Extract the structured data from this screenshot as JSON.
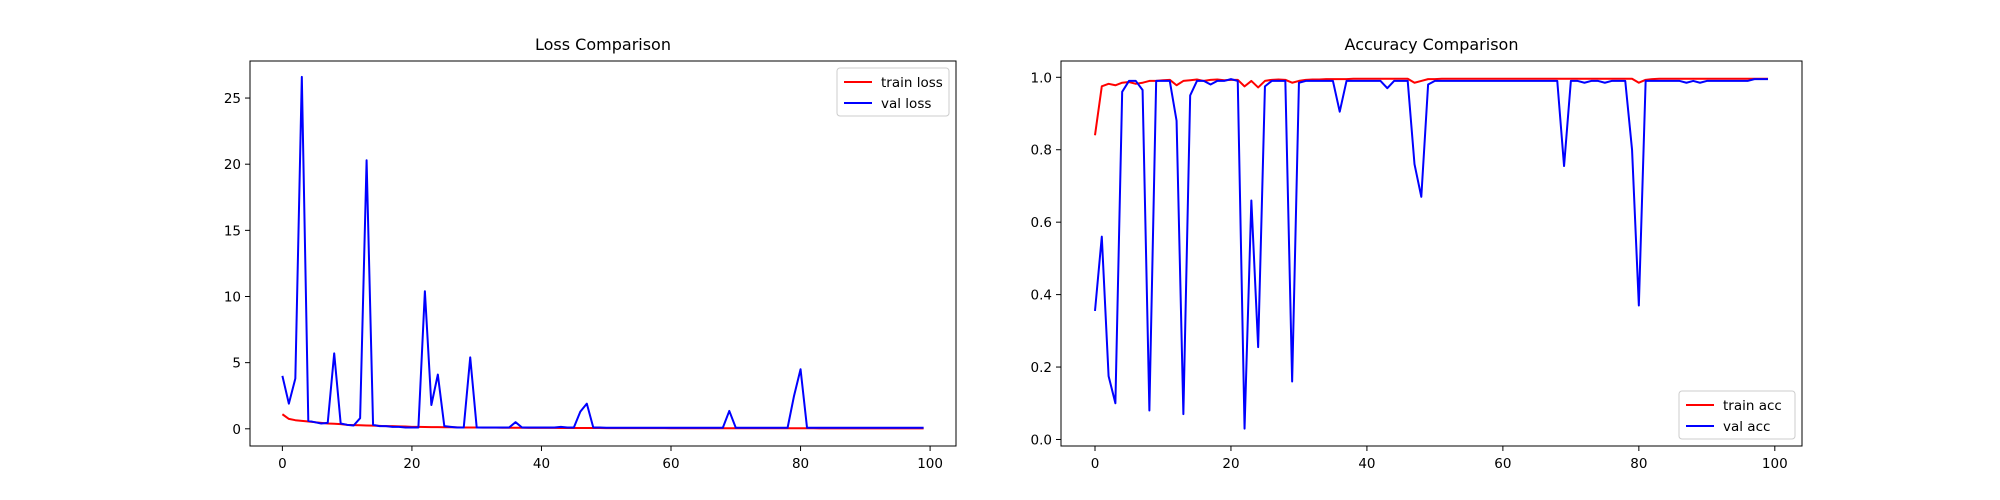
{
  "chart_data": [
    {
      "type": "line",
      "title": "Loss Comparison",
      "xlabel": "",
      "ylabel": "",
      "xlim": [
        -5,
        104
      ],
      "ylim": [
        -1.3,
        27.8
      ],
      "xticks": [
        0,
        20,
        40,
        60,
        80,
        100
      ],
      "yticks": [
        0,
        5,
        10,
        15,
        20,
        25
      ],
      "grid": false,
      "legend_position": "upper right",
      "series": [
        {
          "name": "train loss",
          "color": "#ff0000",
          "x": [
            0,
            1,
            2,
            3,
            4,
            5,
            6,
            7,
            8,
            9,
            10,
            11,
            12,
            13,
            14,
            15,
            16,
            17,
            18,
            19,
            20,
            21,
            22,
            23,
            24,
            25,
            26,
            27,
            28,
            29,
            30,
            31,
            32,
            33,
            34,
            35,
            36,
            37,
            38,
            39,
            40,
            41,
            42,
            43,
            44,
            45,
            46,
            47,
            48,
            49,
            50,
            51,
            52,
            53,
            54,
            55,
            56,
            57,
            58,
            59,
            60,
            61,
            62,
            63,
            64,
            65,
            66,
            67,
            68,
            69,
            70,
            71,
            72,
            73,
            74,
            75,
            76,
            77,
            78,
            79,
            80,
            81,
            82,
            83,
            84,
            85,
            86,
            87,
            88,
            89,
            90,
            91,
            92,
            93,
            94,
            95,
            96,
            97,
            98,
            99
          ],
          "y": [
            1.1,
            0.75,
            0.65,
            0.6,
            0.55,
            0.5,
            0.45,
            0.4,
            0.38,
            0.35,
            0.3,
            0.28,
            0.27,
            0.25,
            0.24,
            0.22,
            0.2,
            0.2,
            0.18,
            0.17,
            0.15,
            0.15,
            0.14,
            0.13,
            0.13,
            0.12,
            0.12,
            0.11,
            0.1,
            0.1,
            0.1,
            0.09,
            0.09,
            0.09,
            0.08,
            0.08,
            0.08,
            0.08,
            0.07,
            0.07,
            0.07,
            0.07,
            0.07,
            0.06,
            0.06,
            0.06,
            0.06,
            0.06,
            0.06,
            0.06,
            0.05,
            0.05,
            0.05,
            0.05,
            0.05,
            0.05,
            0.05,
            0.05,
            0.05,
            0.05,
            0.04,
            0.04,
            0.04,
            0.04,
            0.04,
            0.04,
            0.04,
            0.04,
            0.04,
            0.04,
            0.04,
            0.04,
            0.04,
            0.04,
            0.04,
            0.04,
            0.04,
            0.04,
            0.04,
            0.04,
            0.04,
            0.04,
            0.04,
            0.03,
            0.03,
            0.03,
            0.03,
            0.03,
            0.03,
            0.03,
            0.03,
            0.03,
            0.03,
            0.03,
            0.03,
            0.03,
            0.03,
            0.03,
            0.03,
            0.03
          ]
        },
        {
          "name": "val loss",
          "color": "#0000ff",
          "x": [
            0,
            1,
            2,
            3,
            4,
            5,
            6,
            7,
            8,
            9,
            10,
            11,
            12,
            13,
            14,
            15,
            16,
            17,
            18,
            19,
            20,
            21,
            22,
            23,
            24,
            25,
            26,
            27,
            28,
            29,
            30,
            31,
            32,
            33,
            34,
            35,
            36,
            37,
            38,
            39,
            40,
            41,
            42,
            43,
            44,
            45,
            46,
            47,
            48,
            49,
            50,
            51,
            52,
            53,
            54,
            55,
            56,
            57,
            58,
            59,
            60,
            61,
            62,
            63,
            64,
            65,
            66,
            67,
            68,
            69,
            70,
            71,
            72,
            73,
            74,
            75,
            76,
            77,
            78,
            79,
            80,
            81,
            82,
            83,
            84,
            85,
            86,
            87,
            88,
            89,
            90,
            91,
            92,
            93,
            94,
            95,
            96,
            97,
            98,
            99
          ],
          "y": [
            4.0,
            1.9,
            3.8,
            26.6,
            0.6,
            0.5,
            0.4,
            0.45,
            5.7,
            0.4,
            0.3,
            0.25,
            0.8,
            20.3,
            0.3,
            0.2,
            0.2,
            0.15,
            0.15,
            0.1,
            0.1,
            0.1,
            10.4,
            1.8,
            4.1,
            0.2,
            0.15,
            0.1,
            0.1,
            5.4,
            0.1,
            0.1,
            0.1,
            0.1,
            0.1,
            0.1,
            0.5,
            0.1,
            0.1,
            0.1,
            0.1,
            0.1,
            0.1,
            0.15,
            0.1,
            0.1,
            1.3,
            1.9,
            0.1,
            0.1,
            0.08,
            0.08,
            0.08,
            0.08,
            0.08,
            0.08,
            0.08,
            0.08,
            0.08,
            0.08,
            0.08,
            0.08,
            0.08,
            0.08,
            0.08,
            0.08,
            0.08,
            0.08,
            0.08,
            1.35,
            0.08,
            0.08,
            0.08,
            0.08,
            0.08,
            0.08,
            0.08,
            0.08,
            0.08,
            2.5,
            4.5,
            0.08,
            0.08,
            0.08,
            0.08,
            0.08,
            0.08,
            0.08,
            0.08,
            0.08,
            0.08,
            0.08,
            0.08,
            0.08,
            0.08,
            0.08,
            0.08,
            0.08,
            0.08,
            0.08
          ]
        }
      ]
    },
    {
      "type": "line",
      "title": "Accuracy Comparison",
      "xlabel": "",
      "ylabel": "",
      "xlim": [
        -5,
        104
      ],
      "ylim": [
        -0.018,
        1.045
      ],
      "xticks": [
        0,
        20,
        40,
        60,
        80,
        100
      ],
      "yticks": [
        0.0,
        0.2,
        0.4,
        0.6,
        0.8,
        1.0
      ],
      "ytick_labels": [
        "0.0",
        "0.2",
        "0.4",
        "0.6",
        "0.8",
        "1.0"
      ],
      "grid": false,
      "legend_position": "lower right",
      "series": [
        {
          "name": "train acc",
          "color": "#ff0000",
          "x": [
            0,
            1,
            2,
            3,
            4,
            5,
            6,
            7,
            8,
            9,
            10,
            11,
            12,
            13,
            14,
            15,
            16,
            17,
            18,
            19,
            20,
            21,
            22,
            23,
            24,
            25,
            26,
            27,
            28,
            29,
            30,
            31,
            32,
            33,
            34,
            35,
            36,
            37,
            38,
            39,
            40,
            41,
            42,
            43,
            44,
            45,
            46,
            47,
            48,
            49,
            50,
            51,
            52,
            53,
            54,
            55,
            56,
            57,
            58,
            59,
            60,
            61,
            62,
            63,
            64,
            65,
            66,
            67,
            68,
            69,
            70,
            71,
            72,
            73,
            74,
            75,
            76,
            77,
            78,
            79,
            80,
            81,
            82,
            83,
            84,
            85,
            86,
            87,
            88,
            89,
            90,
            91,
            92,
            93,
            94,
            95,
            96,
            97,
            98,
            99
          ],
          "y": [
            0.84,
            0.975,
            0.982,
            0.978,
            0.985,
            0.987,
            0.982,
            0.985,
            0.99,
            0.99,
            0.992,
            0.993,
            0.978,
            0.99,
            0.992,
            0.994,
            0.99,
            0.993,
            0.994,
            0.992,
            0.993,
            0.993,
            0.975,
            0.99,
            0.972,
            0.99,
            0.993,
            0.994,
            0.993,
            0.985,
            0.99,
            0.993,
            0.994,
            0.994,
            0.995,
            0.995,
            0.995,
            0.995,
            0.996,
            0.996,
            0.996,
            0.996,
            0.996,
            0.996,
            0.996,
            0.996,
            0.996,
            0.985,
            0.99,
            0.995,
            0.995,
            0.996,
            0.996,
            0.996,
            0.996,
            0.996,
            0.996,
            0.996,
            0.996,
            0.996,
            0.996,
            0.996,
            0.996,
            0.996,
            0.996,
            0.996,
            0.996,
            0.996,
            0.996,
            0.996,
            0.996,
            0.996,
            0.996,
            0.996,
            0.996,
            0.996,
            0.996,
            0.996,
            0.996,
            0.996,
            0.985,
            0.993,
            0.995,
            0.996,
            0.996,
            0.996,
            0.996,
            0.996,
            0.996,
            0.996,
            0.996,
            0.996,
            0.996,
            0.996,
            0.996,
            0.996,
            0.996,
            0.996,
            0.996,
            0.996
          ]
        },
        {
          "name": "val acc",
          "color": "#0000ff",
          "x": [
            0,
            1,
            2,
            3,
            4,
            5,
            6,
            7,
            8,
            9,
            10,
            11,
            12,
            13,
            14,
            15,
            16,
            17,
            18,
            19,
            20,
            21,
            22,
            23,
            24,
            25,
            26,
            27,
            28,
            29,
            30,
            31,
            32,
            33,
            34,
            35,
            36,
            37,
            38,
            39,
            40,
            41,
            42,
            43,
            44,
            45,
            46,
            47,
            48,
            49,
            50,
            51,
            52,
            53,
            54,
            55,
            56,
            57,
            58,
            59,
            60,
            61,
            62,
            63,
            64,
            65,
            66,
            67,
            68,
            69,
            70,
            71,
            72,
            73,
            74,
            75,
            76,
            77,
            78,
            79,
            80,
            81,
            82,
            83,
            84,
            85,
            86,
            87,
            88,
            89,
            90,
            91,
            92,
            93,
            94,
            95,
            96,
            97,
            98,
            99
          ],
          "y": [
            0.355,
            0.56,
            0.175,
            0.1,
            0.96,
            0.99,
            0.99,
            0.965,
            0.08,
            0.99,
            0.99,
            0.99,
            0.88,
            0.07,
            0.95,
            0.99,
            0.99,
            0.98,
            0.99,
            0.99,
            0.995,
            0.99,
            0.03,
            0.66,
            0.255,
            0.975,
            0.99,
            0.99,
            0.99,
            0.16,
            0.985,
            0.99,
            0.99,
            0.99,
            0.99,
            0.99,
            0.905,
            0.99,
            0.99,
            0.99,
            0.99,
            0.99,
            0.99,
            0.97,
            0.99,
            0.99,
            0.99,
            0.76,
            0.67,
            0.98,
            0.99,
            0.99,
            0.99,
            0.99,
            0.99,
            0.99,
            0.99,
            0.99,
            0.99,
            0.99,
            0.99,
            0.99,
            0.99,
            0.99,
            0.99,
            0.99,
            0.99,
            0.99,
            0.99,
            0.755,
            0.99,
            0.99,
            0.985,
            0.99,
            0.99,
            0.985,
            0.99,
            0.99,
            0.99,
            0.8,
            0.37,
            0.99,
            0.99,
            0.99,
            0.99,
            0.99,
            0.99,
            0.985,
            0.99,
            0.985,
            0.99,
            0.99,
            0.99,
            0.99,
            0.99,
            0.99,
            0.99,
            0.995,
            0.995,
            0.995
          ]
        }
      ]
    }
  ]
}
